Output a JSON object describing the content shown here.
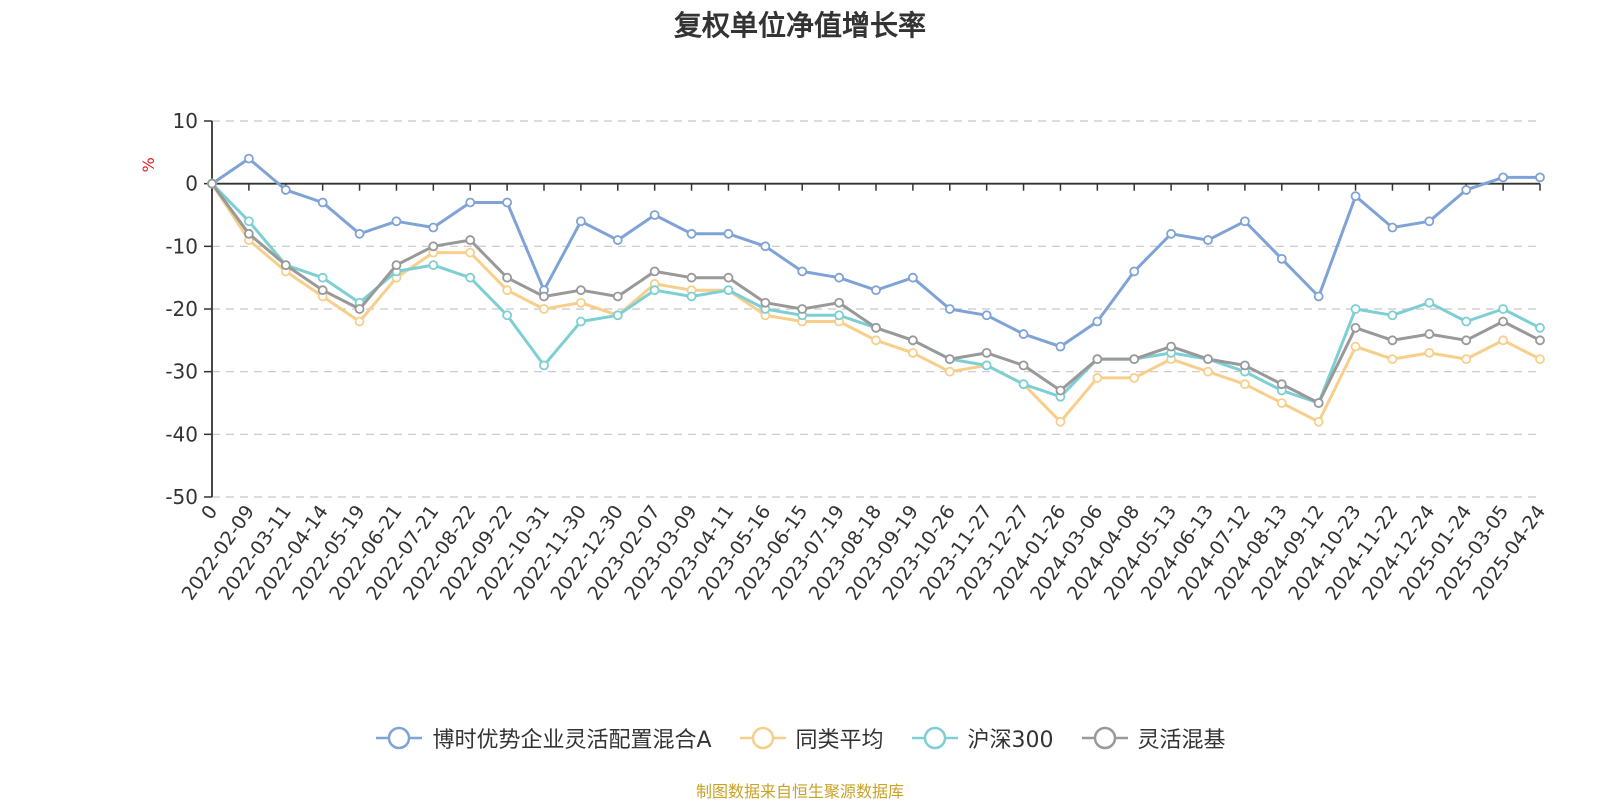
{
  "title": "复权单位净值增长率",
  "source": "制图数据来自恒生聚源数据库",
  "source_color": "#c9a227",
  "chart_data": {
    "type": "line",
    "title": "复权单位净值增长率",
    "ylabel": "%",
    "ylabel_color": "#e02020",
    "ylim": [
      -50,
      10
    ],
    "yticks": [
      10,
      0,
      -10,
      -20,
      -30,
      -40,
      -50
    ],
    "grid": true,
    "legend_position": "bottom",
    "categories": [
      "0",
      "2022-02-09",
      "2022-03-11",
      "2022-04-14",
      "2022-05-19",
      "2022-06-21",
      "2022-07-21",
      "2022-08-22",
      "2022-09-22",
      "2022-10-31",
      "2022-11-30",
      "2022-12-30",
      "2023-02-07",
      "2023-03-09",
      "2023-04-11",
      "2023-05-16",
      "2023-06-15",
      "2023-07-19",
      "2023-08-18",
      "2023-09-19",
      "2023-10-26",
      "2023-11-27",
      "2023-12-27",
      "2024-01-26",
      "2024-03-06",
      "2024-04-08",
      "2024-05-13",
      "2024-06-13",
      "2024-07-12",
      "2024-08-13",
      "2024-09-12",
      "2024-10-23",
      "2024-11-22",
      "2024-12-24",
      "2025-01-24",
      "2025-03-05",
      "2025-04-24"
    ],
    "series": [
      {
        "name": "博时优势企业灵活配置混合A",
        "color": "#7fa3d6",
        "values": [
          0,
          4,
          -1,
          -3,
          -8,
          -6,
          -7,
          -3,
          -3,
          -17,
          -6,
          -9,
          -5,
          -8,
          -8,
          -10,
          -14,
          -15,
          -17,
          -15,
          -20,
          -21,
          -24,
          -26,
          -22,
          -14,
          -8,
          -9,
          -6,
          -12,
          -18,
          -2,
          -7,
          -6,
          -1,
          1,
          1
        ]
      },
      {
        "name": "同类平均",
        "color": "#f7cf8b",
        "values": [
          0,
          -9,
          -14,
          -18,
          -22,
          -15,
          -11,
          -11,
          -17,
          -20,
          -19,
          -21,
          -16,
          -17,
          -17,
          -21,
          -22,
          -22,
          -25,
          -27,
          -30,
          -29,
          -32,
          -38,
          -31,
          -31,
          -28,
          -30,
          -32,
          -35,
          -38,
          -26,
          -28,
          -27,
          -28,
          -25,
          -28
        ]
      },
      {
        "name": "沪深300",
        "color": "#7dcfd4",
        "values": [
          0,
          -6,
          -13,
          -15,
          -19,
          -14,
          -13,
          -15,
          -21,
          -29,
          -22,
          -21,
          -17,
          -18,
          -17,
          -20,
          -21,
          -21,
          -23,
          -25,
          -28,
          -29,
          -32,
          -34,
          -28,
          -28,
          -27,
          -28,
          -30,
          -33,
          -35,
          -20,
          -21,
          -19,
          -22,
          -20,
          -23
        ]
      },
      {
        "name": "灵活混基",
        "color": "#999999",
        "values": [
          0,
          -8,
          -13,
          -17,
          -20,
          -13,
          -10,
          -9,
          -15,
          -18,
          -17,
          -18,
          -14,
          -15,
          -15,
          -19,
          -20,
          -19,
          -23,
          -25,
          -28,
          -27,
          -29,
          -33,
          -28,
          -28,
          -26,
          -28,
          -29,
          -32,
          -35,
          -23,
          -25,
          -24,
          -25,
          -22,
          -25
        ]
      }
    ]
  }
}
